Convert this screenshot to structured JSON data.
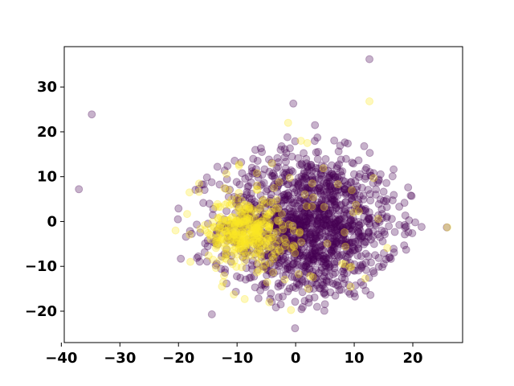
{
  "chart_data": {
    "type": "scatter",
    "title": "",
    "xlabel": "",
    "ylabel": "",
    "xlim": [
      -39.5,
      28.5
    ],
    "ylim": [
      -27,
      39
    ],
    "xticks": [
      -40,
      -30,
      -20,
      -10,
      0,
      10,
      20
    ],
    "yticks": [
      -20,
      -10,
      0,
      10,
      20,
      30
    ],
    "xtick_labels": [
      "−40",
      "−30",
      "−20",
      "−10",
      "0",
      "10",
      "20"
    ],
    "ytick_labels": [
      "−20",
      "−10",
      "0",
      "10",
      "20",
      "30"
    ],
    "grid": false,
    "legend": "none",
    "marker_alpha": 0.3,
    "colors": {
      "class_0": "#440154",
      "class_1": "#fde725"
    },
    "series": [
      {
        "class": 0,
        "color": "#440154",
        "count": 1400,
        "points": [
          [
            -34.8,
            23.9
          ],
          [
            -37.0,
            7.2
          ],
          [
            12.6,
            36.2
          ],
          [
            -0.4,
            26.3
          ],
          [
            3.3,
            21.5
          ],
          [
            25.8,
            -1.3
          ],
          [
            -14.3,
            -20.7
          ],
          [
            -0.1,
            -23.8
          ],
          [
            21.5,
            -1.2
          ],
          [
            19.8,
            5.7
          ],
          [
            -20.0,
            2.9
          ],
          [
            -20.1,
            0.5
          ],
          [
            -19.6,
            -8.3
          ],
          [
            8.9,
            17.4
          ],
          [
            11.7,
            16.8
          ],
          [
            4.9,
            -19.9
          ],
          [
            -1.4,
            18.8
          ],
          [
            16.8,
            -6.9
          ],
          [
            19.2,
            7.6
          ],
          [
            18.6,
            -0.8
          ]
        ],
        "cluster": {
          "mean": [
            2,
            -1
          ],
          "sd": [
            7.5,
            8.2
          ],
          "bounds": {
            "x": [
              -20.5,
              22
            ],
            "y": [
              -21,
              20
            ]
          }
        }
      },
      {
        "class": 1,
        "color": "#fde725",
        "count": 400,
        "points": [
          [
            12.6,
            26.8
          ],
          [
            25.9,
            -1.3
          ],
          [
            0.9,
            18.0
          ],
          [
            2.0,
            17.5
          ],
          [
            -8.7,
            -17.3
          ],
          [
            -4.5,
            -18.0
          ],
          [
            3.0,
            5.4
          ],
          [
            -16.5,
            6.6
          ],
          [
            14.1,
            0.6
          ],
          [
            13.3,
            9.7
          ],
          [
            8.5,
            -5.6
          ],
          [
            -20.5,
            -2.0
          ]
        ],
        "cluster": {
          "mean": [
            -8.5,
            -2
          ],
          "sd": [
            3.2,
            3.8
          ]
        }
      }
    ]
  }
}
